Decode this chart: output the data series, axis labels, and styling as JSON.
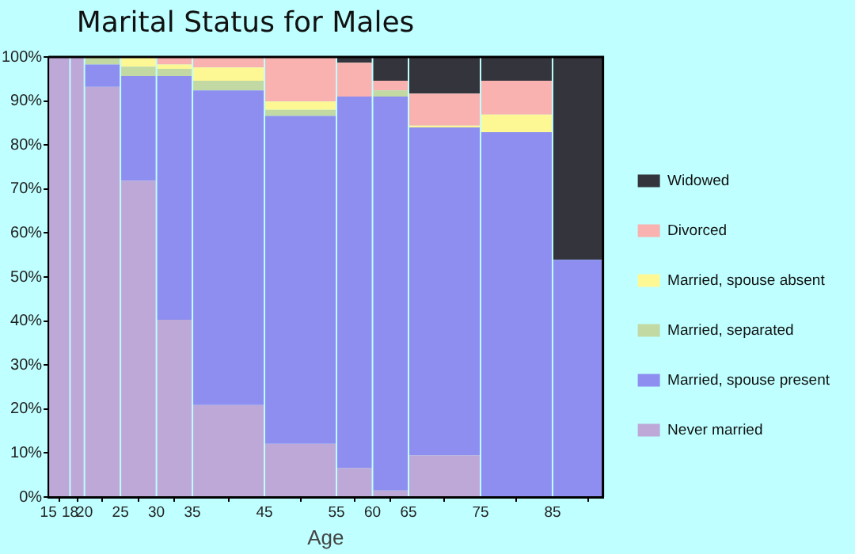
{
  "chart_data": {
    "type": "bar",
    "stacked": true,
    "title": "Marital Status for Males",
    "xlabel": "Age",
    "x": [
      16.5,
      19,
      22.5,
      27.5,
      32.5,
      40,
      50,
      57.5,
      62.5,
      70,
      80,
      88.5
    ],
    "xlim": [
      15,
      92
    ],
    "xticks": [
      15,
      18,
      20,
      25,
      30,
      35,
      45,
      55,
      60,
      65,
      75,
      85
    ],
    "ylim": [
      0,
      100
    ],
    "yticks": [
      {
        "value": 0,
        "label": "0%"
      },
      {
        "value": 10,
        "label": "10%"
      },
      {
        "value": 20,
        "label": "20%"
      },
      {
        "value": 30,
        "label": "30%"
      },
      {
        "value": 40,
        "label": "40%"
      },
      {
        "value": 50,
        "label": "50%"
      },
      {
        "value": 60,
        "label": "60%"
      },
      {
        "value": 70,
        "label": "70%"
      },
      {
        "value": 80,
        "label": "80%"
      },
      {
        "value": 90,
        "label": "90%"
      },
      {
        "value": 100,
        "label": "100%"
      }
    ],
    "legend": "right",
    "series": [
      {
        "name": "Never married",
        "color": "#bda8d8",
        "values": [
          100,
          100,
          93.2,
          71.9,
          40.3,
          20.9,
          12.1,
          6.6,
          1.5,
          9.5,
          0,
          0
        ]
      },
      {
        "name": "Married, spouse present",
        "color": "#8d8ef0",
        "values": [
          0,
          0,
          5.1,
          23.8,
          55.4,
          71.5,
          74.5,
          84.4,
          89.5,
          74.5,
          82.9,
          53.9
        ]
      },
      {
        "name": "Married, separated",
        "color": "#c2d9a4",
        "values": [
          0,
          0,
          1.7,
          2.1,
          1.6,
          2.2,
          1.4,
          0,
          1.4,
          0,
          0,
          0
        ]
      },
      {
        "name": "Married, spouse absent",
        "color": "#fdf894",
        "values": [
          0,
          0,
          0,
          2.2,
          1.0,
          3.0,
          1.9,
          0,
          0,
          0.4,
          4.0,
          0
        ]
      },
      {
        "name": "Divorced",
        "color": "#f9b2b0",
        "values": [
          0,
          0,
          0,
          0,
          1.7,
          2.4,
          10.1,
          7.7,
          2.2,
          7.3,
          7.7,
          0
        ]
      },
      {
        "name": "Widowed",
        "color": "#34353c",
        "values": [
          0,
          0,
          0,
          0,
          0,
          0,
          0,
          1.3,
          5.4,
          8.3,
          5.4,
          46.1
        ]
      }
    ]
  }
}
